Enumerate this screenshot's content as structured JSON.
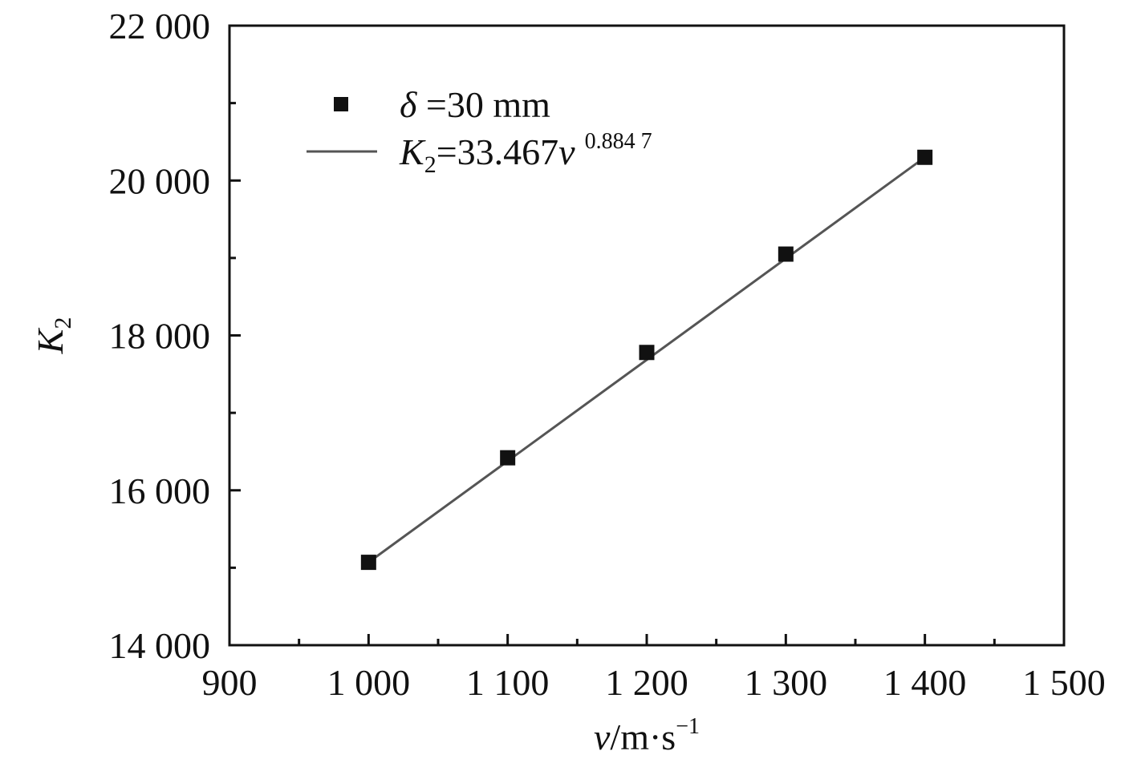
{
  "chart_data": {
    "type": "scatter",
    "x_axis": {
      "label_var": "v",
      "label_unit": "/m·s",
      "label_exp": "−1",
      "range": [
        900,
        1500
      ],
      "ticks": [
        900,
        1000,
        1100,
        1200,
        1300,
        1400,
        1500
      ],
      "tick_labels": [
        "900",
        "1 000",
        "1 100",
        "1 200",
        "1 300",
        "1 400",
        "1 500"
      ],
      "minor_ticks": [
        950,
        1050,
        1150,
        1250,
        1350,
        1450
      ]
    },
    "y_axis": {
      "label_var": "K",
      "label_sub": "2",
      "range": [
        14000,
        22000
      ],
      "ticks": [
        14000,
        16000,
        18000,
        20000,
        22000
      ],
      "tick_labels": [
        "14 000",
        "16 000",
        "18 000",
        "20 000",
        "22 000"
      ],
      "minor_ticks": [
        15000,
        17000,
        19000,
        21000
      ]
    },
    "series": [
      {
        "name": "δ =30 mm",
        "legend_var": "δ",
        "legend_rest": " =30 mm",
        "kind": "scatter",
        "marker": "square",
        "color": "#111111",
        "x": [
          1000,
          1100,
          1200,
          1300,
          1400
        ],
        "y": [
          15070,
          16420,
          17780,
          19050,
          20300
        ]
      },
      {
        "name": "K2=33.467v 0.884 7",
        "legend_var": "K",
        "legend_sub": "2",
        "legend_mid": "=33.467",
        "legend_var2": "v",
        "legend_exp": "0.884 7",
        "kind": "line",
        "color": "#555555",
        "x": [
          1000,
          1400
        ],
        "y": [
          15070,
          20300
        ]
      }
    ],
    "legend": {
      "placement": "top-left"
    },
    "grid": false
  }
}
